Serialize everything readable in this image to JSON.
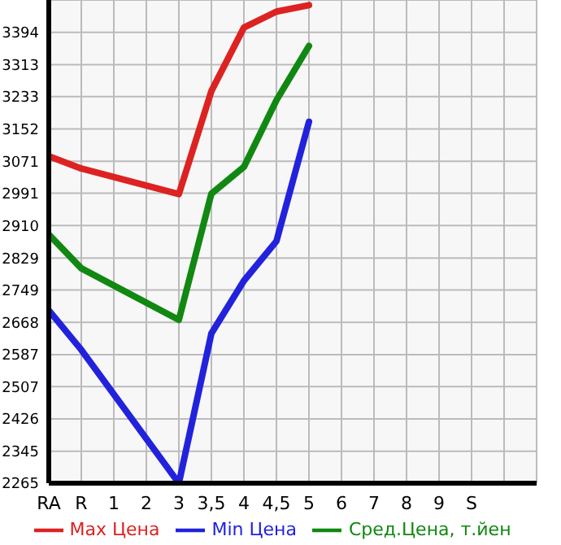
{
  "chart_data": {
    "type": "line",
    "categories": [
      "RA",
      "R",
      "1",
      "2",
      "3",
      "3,5",
      "4",
      "4,5",
      "5",
      "6",
      "7",
      "8",
      "9",
      "S",
      null,
      null
    ],
    "series": [
      {
        "name": "Max Цена",
        "color": "#dd2222",
        "values": [
          3084,
          3053,
          null,
          null,
          2989,
          3247,
          3406,
          3446,
          3462,
          null,
          null,
          null,
          null,
          null,
          null,
          null
        ]
      },
      {
        "name": "Min Цена",
        "color": "#2222dd",
        "values": [
          2698,
          2599,
          null,
          null,
          2265,
          2640,
          2772,
          2871,
          3170,
          null,
          null,
          null,
          null,
          null,
          null,
          null
        ]
      },
      {
        "name": "Сред.Цена, т.йен",
        "color": "#118811",
        "values": [
          2888,
          2803,
          null,
          null,
          2674,
          2990,
          3057,
          3224,
          3360,
          null,
          null,
          null,
          null,
          null,
          null,
          null
        ]
      }
    ],
    "ylim": [
      2265,
      3475
    ],
    "yticks": [
      2265,
      2345,
      2426,
      2507,
      2587,
      2668,
      2749,
      2829,
      2910,
      2991,
      3071,
      3152,
      3233,
      3313,
      3394
    ],
    "grid": true,
    "legend": "bottom",
    "marker": "none",
    "line_style": "solid"
  }
}
